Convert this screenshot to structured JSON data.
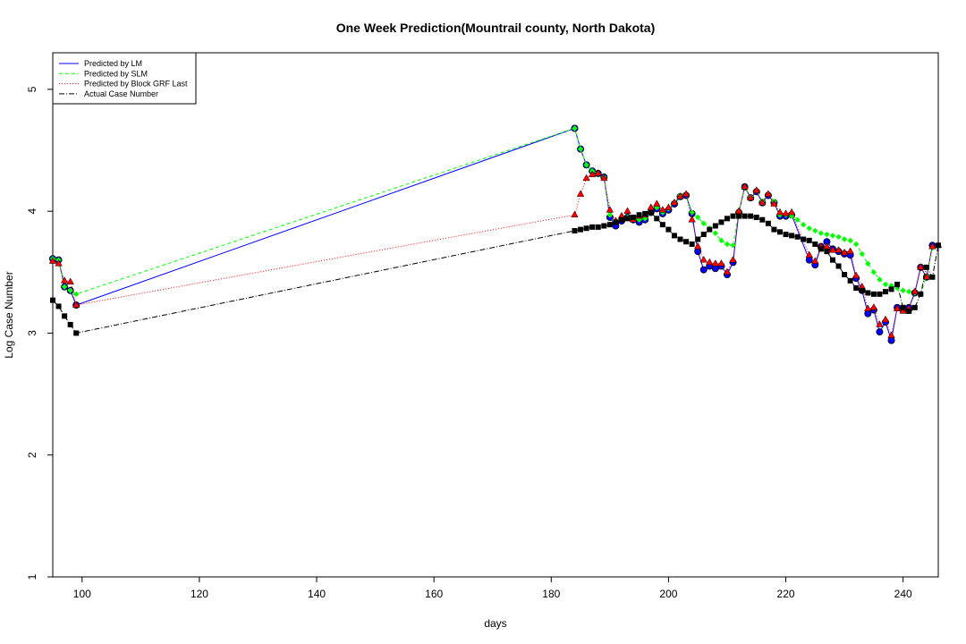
{
  "chart_data": {
    "type": "line",
    "title": "One Week Prediction(Mountrail county, North Dakota)",
    "xlabel": "days",
    "ylabel": "Log Case Number",
    "xlim": [
      95,
      246
    ],
    "ylim": [
      1,
      5.3
    ],
    "xticks": [
      100,
      120,
      140,
      160,
      180,
      200,
      220,
      240
    ],
    "yticks": [
      1,
      2,
      3,
      4,
      5
    ],
    "legend_position": "top-left",
    "x": [
      95,
      96,
      97,
      98,
      99,
      184,
      185,
      186,
      187,
      188,
      189,
      190,
      191,
      192,
      193,
      194,
      195,
      196,
      197,
      198,
      199,
      200,
      201,
      202,
      203,
      204,
      205,
      206,
      207,
      208,
      209,
      210,
      211,
      212,
      213,
      214,
      215,
      216,
      217,
      218,
      219,
      220,
      221,
      222,
      223,
      224,
      225,
      226,
      227,
      228,
      229,
      230,
      231,
      232,
      233,
      234,
      235,
      236,
      237,
      238,
      239,
      240,
      241,
      242,
      243,
      244,
      245,
      246
    ],
    "series": [
      {
        "name": "Predicted by LM",
        "color": "#0000ff",
        "dash": "",
        "marker": "circle",
        "values": [
          3.61,
          3.6,
          3.38,
          3.35,
          3.23,
          4.68,
          4.51,
          4.38,
          4.33,
          4.31,
          4.28,
          3.95,
          3.88,
          3.92,
          3.95,
          3.93,
          3.91,
          3.93,
          3.99,
          4.02,
          3.98,
          4.01,
          4.06,
          4.12,
          4.13,
          3.98,
          3.67,
          3.52,
          3.55,
          3.53,
          3.55,
          3.48,
          3.58,
          3.99,
          4.2,
          4.11,
          4.16,
          4.07,
          4.13,
          4.07,
          3.96,
          3.96,
          3.97,
          null,
          null,
          3.6,
          3.56,
          3.71,
          3.75,
          3.69,
          3.67,
          3.65,
          3.64,
          3.45,
          3.35,
          3.16,
          3.19,
          3.01,
          3.09,
          2.94,
          3.21,
          3.19,
          3.21,
          3.33,
          3.54,
          3.46,
          3.72,
          null
        ]
      },
      {
        "name": "Predicted by SLM",
        "color": "#00ff00",
        "dash": "4,3",
        "marker": "diamond",
        "values": [
          3.61,
          3.6,
          3.38,
          3.35,
          3.32,
          4.68,
          4.51,
          4.38,
          4.33,
          4.31,
          4.28,
          3.97,
          3.91,
          3.94,
          3.95,
          3.94,
          3.93,
          3.94,
          4.0,
          4.03,
          3.99,
          4.02,
          4.07,
          4.13,
          4.14,
          3.99,
          3.95,
          3.9,
          3.86,
          3.82,
          3.76,
          3.73,
          3.72,
          4.0,
          4.2,
          4.12,
          4.17,
          4.08,
          4.14,
          4.08,
          3.97,
          3.97,
          3.96,
          3.93,
          3.89,
          3.86,
          3.84,
          3.82,
          3.81,
          3.8,
          3.79,
          3.77,
          3.76,
          3.73,
          3.65,
          3.57,
          3.5,
          3.44,
          3.4,
          3.39,
          3.37,
          3.35,
          3.34,
          3.33,
          3.32,
          3.47,
          3.7,
          3.72
        ]
      },
      {
        "name": "Predicted by Block GRF Last",
        "color": "#ff0000",
        "dash": "1,2",
        "marker": "triangle",
        "values": [
          3.59,
          3.57,
          3.43,
          3.42,
          3.23,
          3.97,
          4.14,
          4.27,
          4.3,
          4.31,
          4.27,
          4.01,
          3.92,
          3.96,
          4.0,
          3.93,
          3.96,
          3.97,
          4.03,
          4.06,
          4.01,
          4.03,
          4.07,
          4.12,
          4.14,
          3.93,
          3.71,
          3.6,
          3.58,
          3.57,
          3.57,
          3.5,
          3.6,
          4.0,
          4.2,
          4.11,
          4.17,
          4.07,
          4.14,
          4.06,
          3.99,
          3.98,
          3.99,
          null,
          null,
          3.64,
          3.59,
          3.71,
          3.71,
          3.68,
          3.68,
          3.66,
          3.67,
          3.47,
          3.38,
          3.2,
          3.21,
          3.07,
          3.11,
          2.98,
          3.2,
          3.18,
          3.2,
          3.34,
          3.54,
          3.46,
          3.71,
          3.72
        ]
      },
      {
        "name": "Actual Case Number",
        "color": "#000000",
        "dash": "6,2,1,2",
        "marker": "square",
        "values": [
          3.27,
          3.22,
          3.14,
          3.07,
          3.0,
          3.84,
          3.85,
          3.86,
          3.87,
          3.87,
          3.88,
          3.89,
          3.91,
          3.93,
          3.94,
          3.95,
          3.97,
          3.98,
          3.99,
          3.94,
          3.89,
          3.85,
          3.8,
          3.77,
          3.75,
          3.73,
          3.77,
          3.81,
          3.85,
          3.88,
          3.91,
          3.94,
          3.96,
          3.96,
          3.96,
          3.96,
          3.95,
          3.93,
          3.9,
          3.85,
          3.83,
          3.81,
          3.8,
          3.79,
          3.77,
          3.76,
          3.73,
          3.69,
          3.67,
          3.6,
          3.55,
          3.48,
          3.43,
          3.37,
          3.35,
          3.33,
          3.32,
          3.32,
          3.34,
          3.36,
          3.4,
          3.21,
          3.18,
          3.21,
          3.32,
          3.54,
          3.46,
          3.72
        ]
      }
    ]
  }
}
